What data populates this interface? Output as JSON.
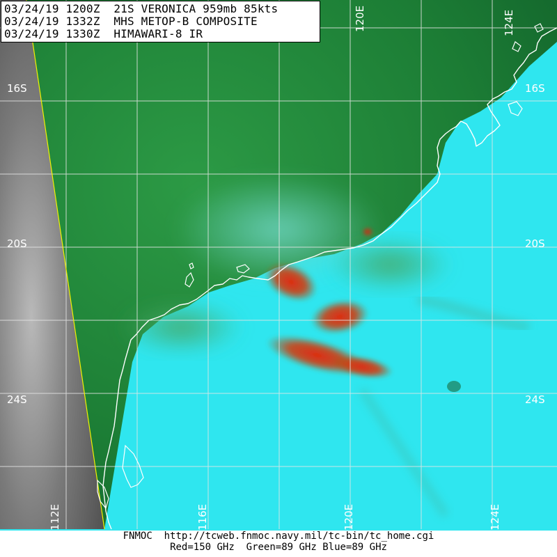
{
  "header": {
    "lines": [
      "03/24/19 1200Z  21S VERONICA 959mb 85kts",
      "03/24/19 1332Z  MHS METOP-B COMPOSITE",
      "03/24/19 1330Z  HIMAWARI-8 IR"
    ]
  },
  "grid_labels": {
    "lat": {
      "s16_left": "16S",
      "s16_right": "16S",
      "s20_left": "20S",
      "s20_right": "20S",
      "s24_left": "24S",
      "s24_right": "24S"
    },
    "lon": {
      "e120_top": "120E",
      "e124_top": "124E",
      "e112_bottom": "112E",
      "e116_bottom": "116E",
      "e120_bottom": "120E",
      "e124_bottom": "124E"
    }
  },
  "footer": {
    "source_line": "FNMOC  http://tcweb.fnmoc.navy.mil/tc-bin/tc_home.cgi",
    "channels_line": "Red=150 GHz  Green=89 GHz Blue=89 GHz"
  },
  "colors": {
    "ocean_cyan": "#2fe6ef",
    "land_green": "#1f8a3a",
    "convection_red": "#d23a14",
    "grid_line": "#e6e6e6",
    "coastline": "#ffffff",
    "swath_edge": "#f2f200",
    "ir_gray": "#6b6b6b"
  }
}
